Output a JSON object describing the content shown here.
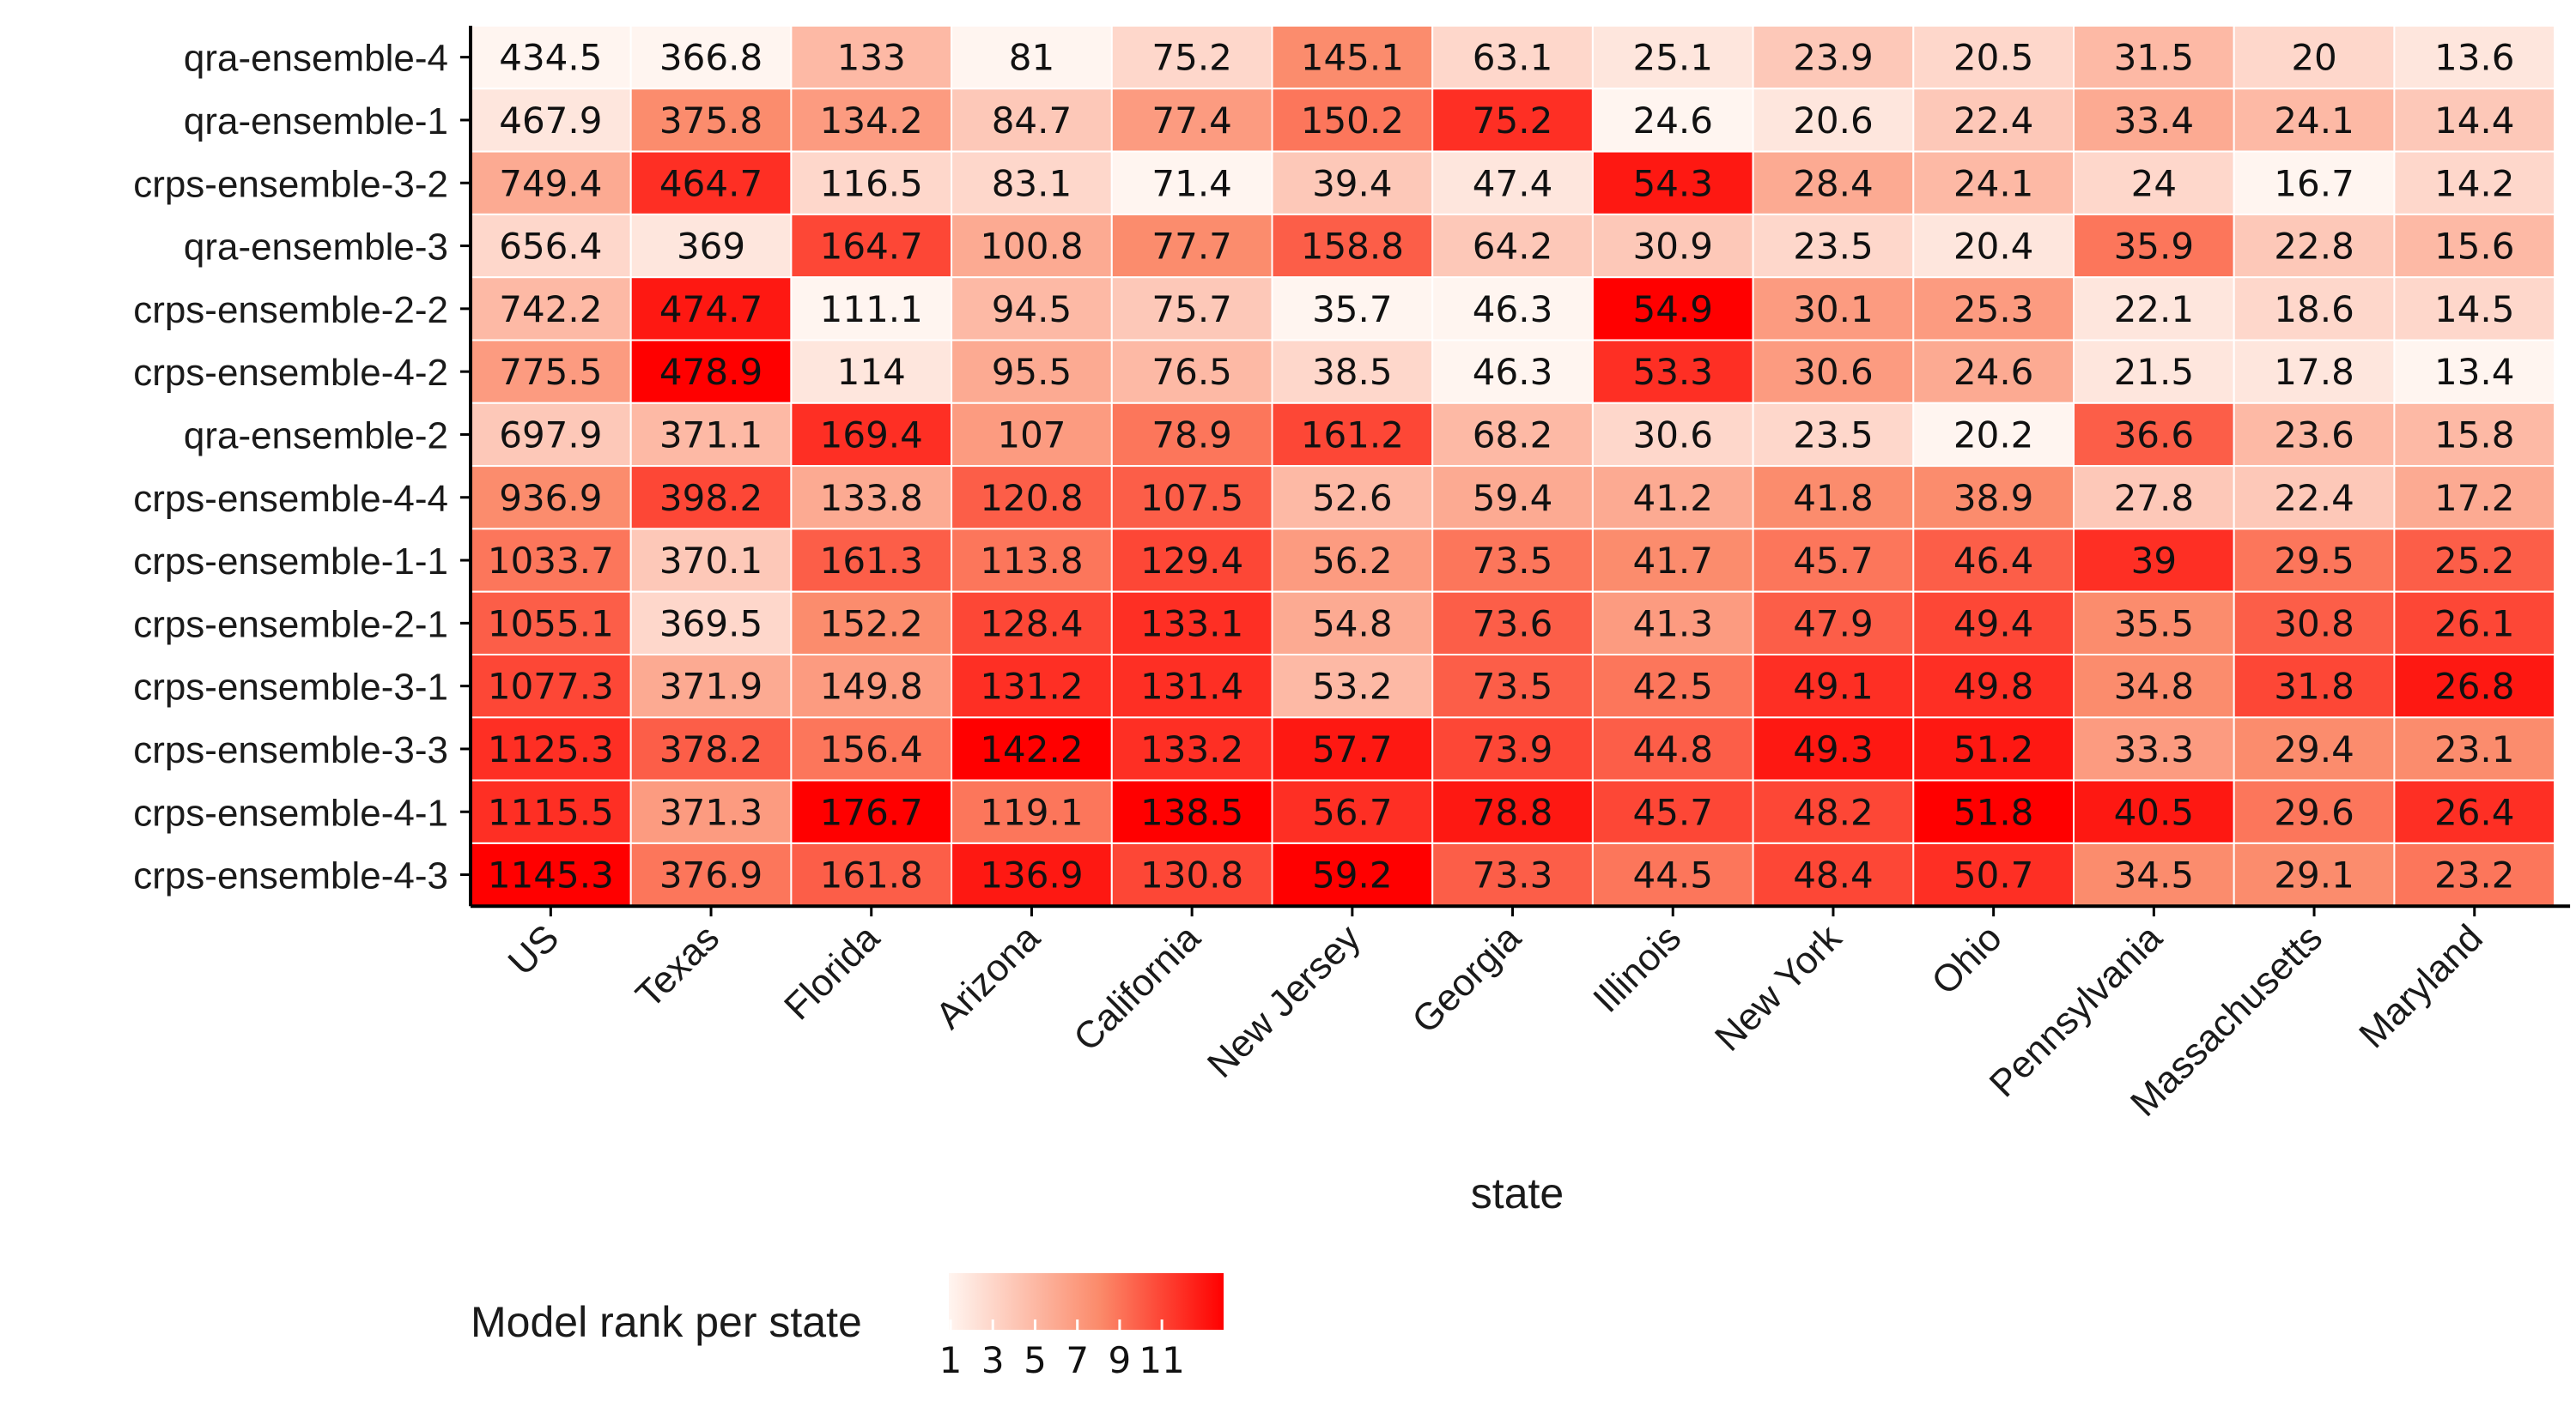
{
  "chart_data": {
    "type": "heatmap",
    "title": "",
    "xlabel": "state",
    "ylabel": "",
    "x_categories": [
      "US",
      "Texas",
      "Florida",
      "Arizona",
      "California",
      "New Jersey",
      "Georgia",
      "Illinois",
      "New York",
      "Ohio",
      "Pennsylvania",
      "Massachusetts",
      "Maryland"
    ],
    "y_categories": [
      "qra-ensemble-4",
      "qra-ensemble-1",
      "crps-ensemble-3-2",
      "qra-ensemble-3",
      "crps-ensemble-2-2",
      "crps-ensemble-4-2",
      "qra-ensemble-2",
      "crps-ensemble-4-4",
      "crps-ensemble-1-1",
      "crps-ensemble-2-1",
      "crps-ensemble-3-1",
      "crps-ensemble-3-3",
      "crps-ensemble-4-1",
      "crps-ensemble-4-3"
    ],
    "cell_labels": [
      [
        "434.5",
        "366.8",
        "133",
        "81",
        "75.2",
        "145.1",
        "63.1",
        "25.1",
        "23.9",
        "20.5",
        "31.5",
        "20",
        "13.6"
      ],
      [
        "467.9",
        "375.8",
        "134.2",
        "84.7",
        "77.4",
        "150.2",
        "75.2",
        "24.6",
        "20.6",
        "22.4",
        "33.4",
        "24.1",
        "14.4"
      ],
      [
        "749.4",
        "464.7",
        "116.5",
        "83.1",
        "71.4",
        "39.4",
        "47.4",
        "54.3",
        "28.4",
        "24.1",
        "24",
        "16.7",
        "14.2"
      ],
      [
        "656.4",
        "369",
        "164.7",
        "100.8",
        "77.7",
        "158.8",
        "64.2",
        "30.9",
        "23.5",
        "20.4",
        "35.9",
        "22.8",
        "15.6"
      ],
      [
        "742.2",
        "474.7",
        "111.1",
        "94.5",
        "75.7",
        "35.7",
        "46.3",
        "54.9",
        "30.1",
        "25.3",
        "22.1",
        "18.6",
        "14.5"
      ],
      [
        "775.5",
        "478.9",
        "114",
        "95.5",
        "76.5",
        "38.5",
        "46.3",
        "53.3",
        "30.6",
        "24.6",
        "21.5",
        "17.8",
        "13.4"
      ],
      [
        "697.9",
        "371.1",
        "169.4",
        "107",
        "78.9",
        "161.2",
        "68.2",
        "30.6",
        "23.5",
        "20.2",
        "36.6",
        "23.6",
        "15.8"
      ],
      [
        "936.9",
        "398.2",
        "133.8",
        "120.8",
        "107.5",
        "52.6",
        "59.4",
        "41.2",
        "41.8",
        "38.9",
        "27.8",
        "22.4",
        "17.2"
      ],
      [
        "1033.7",
        "370.1",
        "161.3",
        "113.8",
        "129.4",
        "56.2",
        "73.5",
        "41.7",
        "45.7",
        "46.4",
        "39",
        "29.5",
        "25.2"
      ],
      [
        "1055.1",
        "369.5",
        "152.2",
        "128.4",
        "133.1",
        "54.8",
        "73.6",
        "41.3",
        "47.9",
        "49.4",
        "35.5",
        "30.8",
        "26.1"
      ],
      [
        "1077.3",
        "371.9",
        "149.8",
        "131.2",
        "131.4",
        "53.2",
        "73.5",
        "42.5",
        "49.1",
        "49.8",
        "34.8",
        "31.8",
        "26.8"
      ],
      [
        "1125.3",
        "378.2",
        "156.4",
        "142.2",
        "133.2",
        "57.7",
        "73.9",
        "44.8",
        "49.3",
        "51.2",
        "33.3",
        "29.4",
        "23.1"
      ],
      [
        "1115.5",
        "371.3",
        "176.7",
        "119.1",
        "138.5",
        "56.7",
        "78.8",
        "45.7",
        "48.2",
        "51.8",
        "40.5",
        "29.6",
        "26.4"
      ],
      [
        "1145.3",
        "376.9",
        "161.8",
        "136.9",
        "130.8",
        "59.2",
        "73.3",
        "44.5",
        "48.4",
        "50.7",
        "34.5",
        "29.1",
        "23.2"
      ]
    ],
    "rank": [
      [
        1,
        1,
        5,
        1,
        3,
        8,
        3,
        2,
        4,
        3,
        5,
        3,
        2
      ],
      [
        2,
        8,
        7,
        4,
        7,
        9,
        12,
        1,
        2,
        4,
        6,
        5,
        4
      ],
      [
        6,
        12,
        3,
        3,
        1,
        4,
        2,
        13,
        6,
        5,
        3,
        1,
        3
      ],
      [
        3,
        2,
        11,
        6,
        8,
        10,
        4,
        4,
        3,
        2,
        9,
        4,
        5
      ],
      [
        5,
        13,
        1,
        5,
        4,
        1,
        1,
        14,
        7,
        7,
        2,
        3,
        3
      ],
      [
        7,
        14,
        2,
        6,
        5,
        3,
        1,
        12,
        7,
        6,
        2,
        2,
        1
      ],
      [
        4,
        5,
        12,
        7,
        9,
        11,
        5,
        3,
        3,
        1,
        10,
        5,
        5
      ],
      [
        8,
        11,
        6,
        10,
        10,
        5,
        6,
        6,
        8,
        8,
        4,
        4,
        6
      ],
      [
        9,
        4,
        10,
        9,
        11,
        7,
        9,
        8,
        9,
        10,
        12,
        9,
        10
      ],
      [
        10,
        3,
        8,
        11,
        12,
        6,
        10,
        7,
        10,
        11,
        8,
        10,
        11
      ],
      [
        11,
        6,
        7,
        12,
        12,
        5,
        10,
        9,
        12,
        12,
        8,
        11,
        13
      ],
      [
        12,
        10,
        9,
        14,
        12,
        13,
        11,
        10,
        13,
        13,
        7,
        8,
        8
      ],
      [
        12,
        7,
        14,
        9,
        14,
        12,
        13,
        11,
        11,
        14,
        13,
        9,
        12
      ],
      [
        14,
        9,
        10,
        13,
        11,
        14,
        10,
        9,
        11,
        12,
        8,
        8,
        9
      ]
    ],
    "legend": {
      "title": "Model rank per state",
      "ticks": [
        "1",
        "3",
        "5",
        "7",
        "9",
        "11"
      ],
      "placement": "bottom"
    },
    "colors": {
      "low": "#fff5f0",
      "mid": "#fb6a4a",
      "high": "#ff0000",
      "cell_border": "#ffffff",
      "axis": "#000000"
    }
  }
}
